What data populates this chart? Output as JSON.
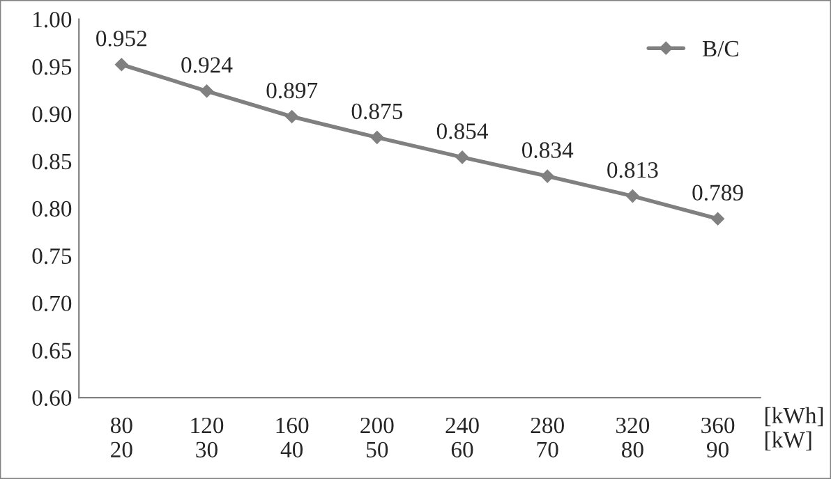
{
  "chart_data": {
    "type": "line",
    "categories": [
      "80\n20",
      "120\n30",
      "160\n40",
      "200\n50",
      "240\n60",
      "280\n70",
      "320\n80",
      "360\n90"
    ],
    "xlabel": "[kWh]\n[kW]",
    "series": [
      {
        "name": "B/C",
        "color": "#808080",
        "values": [
          0.952,
          0.924,
          0.897,
          0.875,
          0.854,
          0.834,
          0.813,
          0.789
        ]
      }
    ],
    "ylim": [
      0.6,
      1.0
    ],
    "yticks": [
      {
        "value": 0.6,
        "label": "0.60"
      },
      {
        "value": 0.65,
        "label": "0.65"
      },
      {
        "value": 0.7,
        "label": "0.70"
      },
      {
        "value": 0.75,
        "label": "0.75"
      },
      {
        "value": 0.8,
        "label": "0.80"
      },
      {
        "value": 0.85,
        "label": "0.85"
      },
      {
        "value": 0.9,
        "label": "0.90"
      },
      {
        "value": 0.95,
        "label": "0.95"
      },
      {
        "value": 1.0,
        "label": "1.00"
      }
    ],
    "data_labels": true,
    "marker": "diamond",
    "line_style": "solid",
    "legend": "top right",
    "grid": false
  }
}
